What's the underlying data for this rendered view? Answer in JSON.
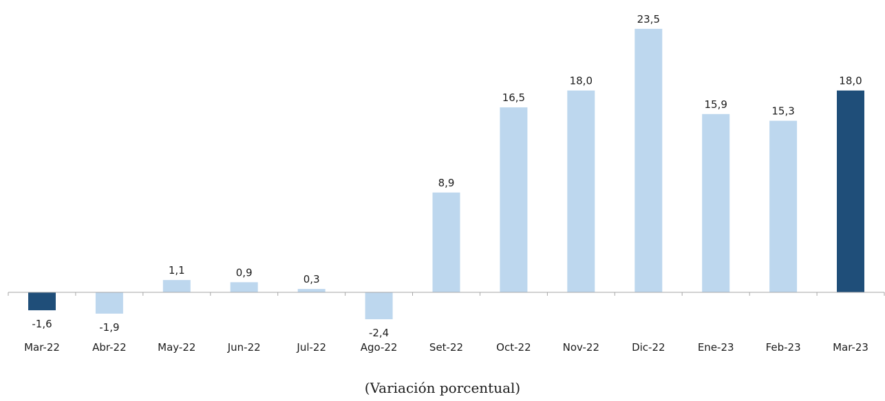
{
  "caption": "(Variación porcentual)",
  "chart_data": {
    "type": "bar",
    "categories": [
      "Mar-22",
      "Abr-22",
      "May-22",
      "Jun-22",
      "Jul-22",
      "Ago-22",
      "Set-22",
      "Oct-22",
      "Nov-22",
      "Dic-22",
      "Ene-23",
      "Feb-23",
      "Mar-23"
    ],
    "values": [
      -1.6,
      -1.9,
      1.1,
      0.9,
      0.3,
      -2.4,
      8.9,
      16.5,
      18.0,
      23.5,
      15.9,
      15.3,
      18.0
    ],
    "value_labels": [
      "-1,6",
      "-1,9",
      "1,1",
      "0,9",
      "0,3",
      "-2,4",
      "8,9",
      "16,5",
      "18,0",
      "23,5",
      "15,9",
      "15,3",
      "18,0"
    ],
    "highlighted_indices": [
      0,
      12
    ],
    "colors": {
      "default_bar": "#bdd7ee",
      "highlight_bar": "#1f4e79",
      "axis": "#a6a6a6"
    },
    "title": "",
    "xlabel": "(Variación porcentual)",
    "ylabel": "",
    "ylim": [
      -2.4,
      23.5
    ],
    "grid": false,
    "legend": "none"
  }
}
